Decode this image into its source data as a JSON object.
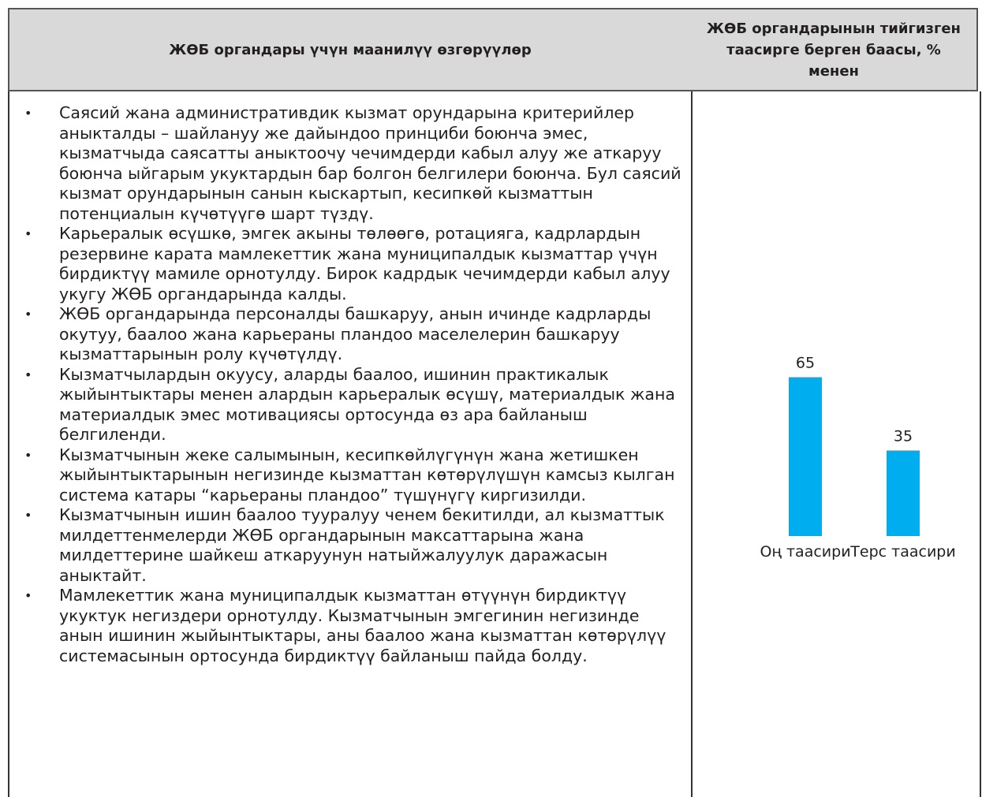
{
  "table": {
    "headers": [
      "ЖӨБ органдары үчүн маанилүү өзгөрүүлөр",
      "ЖӨБ органдарынын тийгизген таасирге берген баасы, % менен"
    ],
    "items": [
      "Саясий жана административдик кызмат орундарына критерийлер аныкталды – шайлануу же дайындоо принциби боюнча эмес, кызматчыда саясатты аныктоочу чечимдерди кабыл алуу же аткаруу боюнча ыйгарым укуктардын бар болгон белгилери боюнча. Бул саясий кызмат орундарынын санын кыскартып, кесипкөй кызматтын потенциалын күчөтүүгө шарт түздү.",
      "Карьералык өсүшкө, эмгек акыны төлөөгө, ротацияга, кадрлардын резервине карата мамлекеттик жана муниципалдык кызматтар үчүн бирдиктүү мамиле орнотулду. Бирок кадрдык чечимдерди кабыл алуу укугу ЖӨБ органдарында калды.",
      "ЖӨБ органдарында персоналды башкаруу, анын ичинде кадрларды окутуу, баалоо жана карьераны пландоо маселелерин башкаруу кызматтарынын ролу күчөтүлдү.",
      "Кызматчылардын окуусу, аларды баалоо, ишинин практикалык жыйынтыктары менен алардын карьералык өсүшү, материалдык жана материалдык эмес мотивациясы ортосунда өз ара байланыш белгиленди.",
      "Кызматчынын жеке салымынын, кесипкөйлүгүнүн жана жетишкен жыйынтыктарынын негизинде кызматтан көтөрүлүшүн камсыз кылган система катары “карьераны пландоо” түшүнүгү киргизилди.",
      "Кызматчынын ишин баалоо тууралуу ченем бекитилди, ал кызматтык милдеттенмелерди ЖӨБ органдарынын максаттарына жана милдеттерине шайкеш аткаруунун натыйжалуулук даражасын аныктайт.",
      "Мамлекеттик жана муниципалдык кызматтан өтүүнүн бирдиктүү укуктук негиздери орнотулду. Кызматчынын эмгегинин негизинде анын ишинин жыйынтыктары, аны баалоо жана кызматтан көтөрүлүү системасынын ортосунда бирдиктүү байланыш пайда болду."
    ]
  },
  "chart_data": {
    "type": "bar",
    "categories": [
      "Оң таасири",
      "Терс таасири"
    ],
    "values": [
      65,
      35
    ],
    "color": "#00aeef"
  }
}
